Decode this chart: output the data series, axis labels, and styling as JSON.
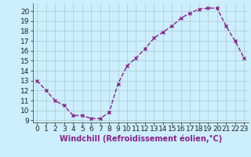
{
  "x": [
    0,
    1,
    2,
    3,
    4,
    5,
    6,
    7,
    8,
    9,
    10,
    11,
    12,
    13,
    14,
    15,
    16,
    17,
    18,
    19,
    20,
    21,
    22,
    23
  ],
  "y": [
    13,
    12,
    11,
    10.5,
    9.5,
    9.5,
    9.2,
    9.2,
    9.8,
    12.7,
    14.5,
    15.3,
    16.2,
    17.3,
    17.9,
    18.5,
    19.3,
    19.8,
    20.2,
    20.3,
    20.3,
    18.5,
    17.0,
    15.3
  ],
  "line_color": "#882288",
  "marker": "x",
  "marker_size": 3,
  "line_width": 1.0,
  "line_style": "--",
  "bg_color": "#cceeff",
  "grid_color": "#aacccc",
  "xlabel": "Windchill (Refroidissement éolien,°C)",
  "xlabel_fontsize": 7,
  "xlim": [
    -0.5,
    23.5
  ],
  "ylim": [
    8.8,
    20.8
  ],
  "yticks": [
    9,
    10,
    11,
    12,
    13,
    14,
    15,
    16,
    17,
    18,
    19,
    20
  ],
  "xticks": [
    0,
    1,
    2,
    3,
    4,
    5,
    6,
    7,
    8,
    9,
    10,
    11,
    12,
    13,
    14,
    15,
    16,
    17,
    18,
    19,
    20,
    21,
    22,
    23
  ],
  "tick_fontsize": 6.5
}
